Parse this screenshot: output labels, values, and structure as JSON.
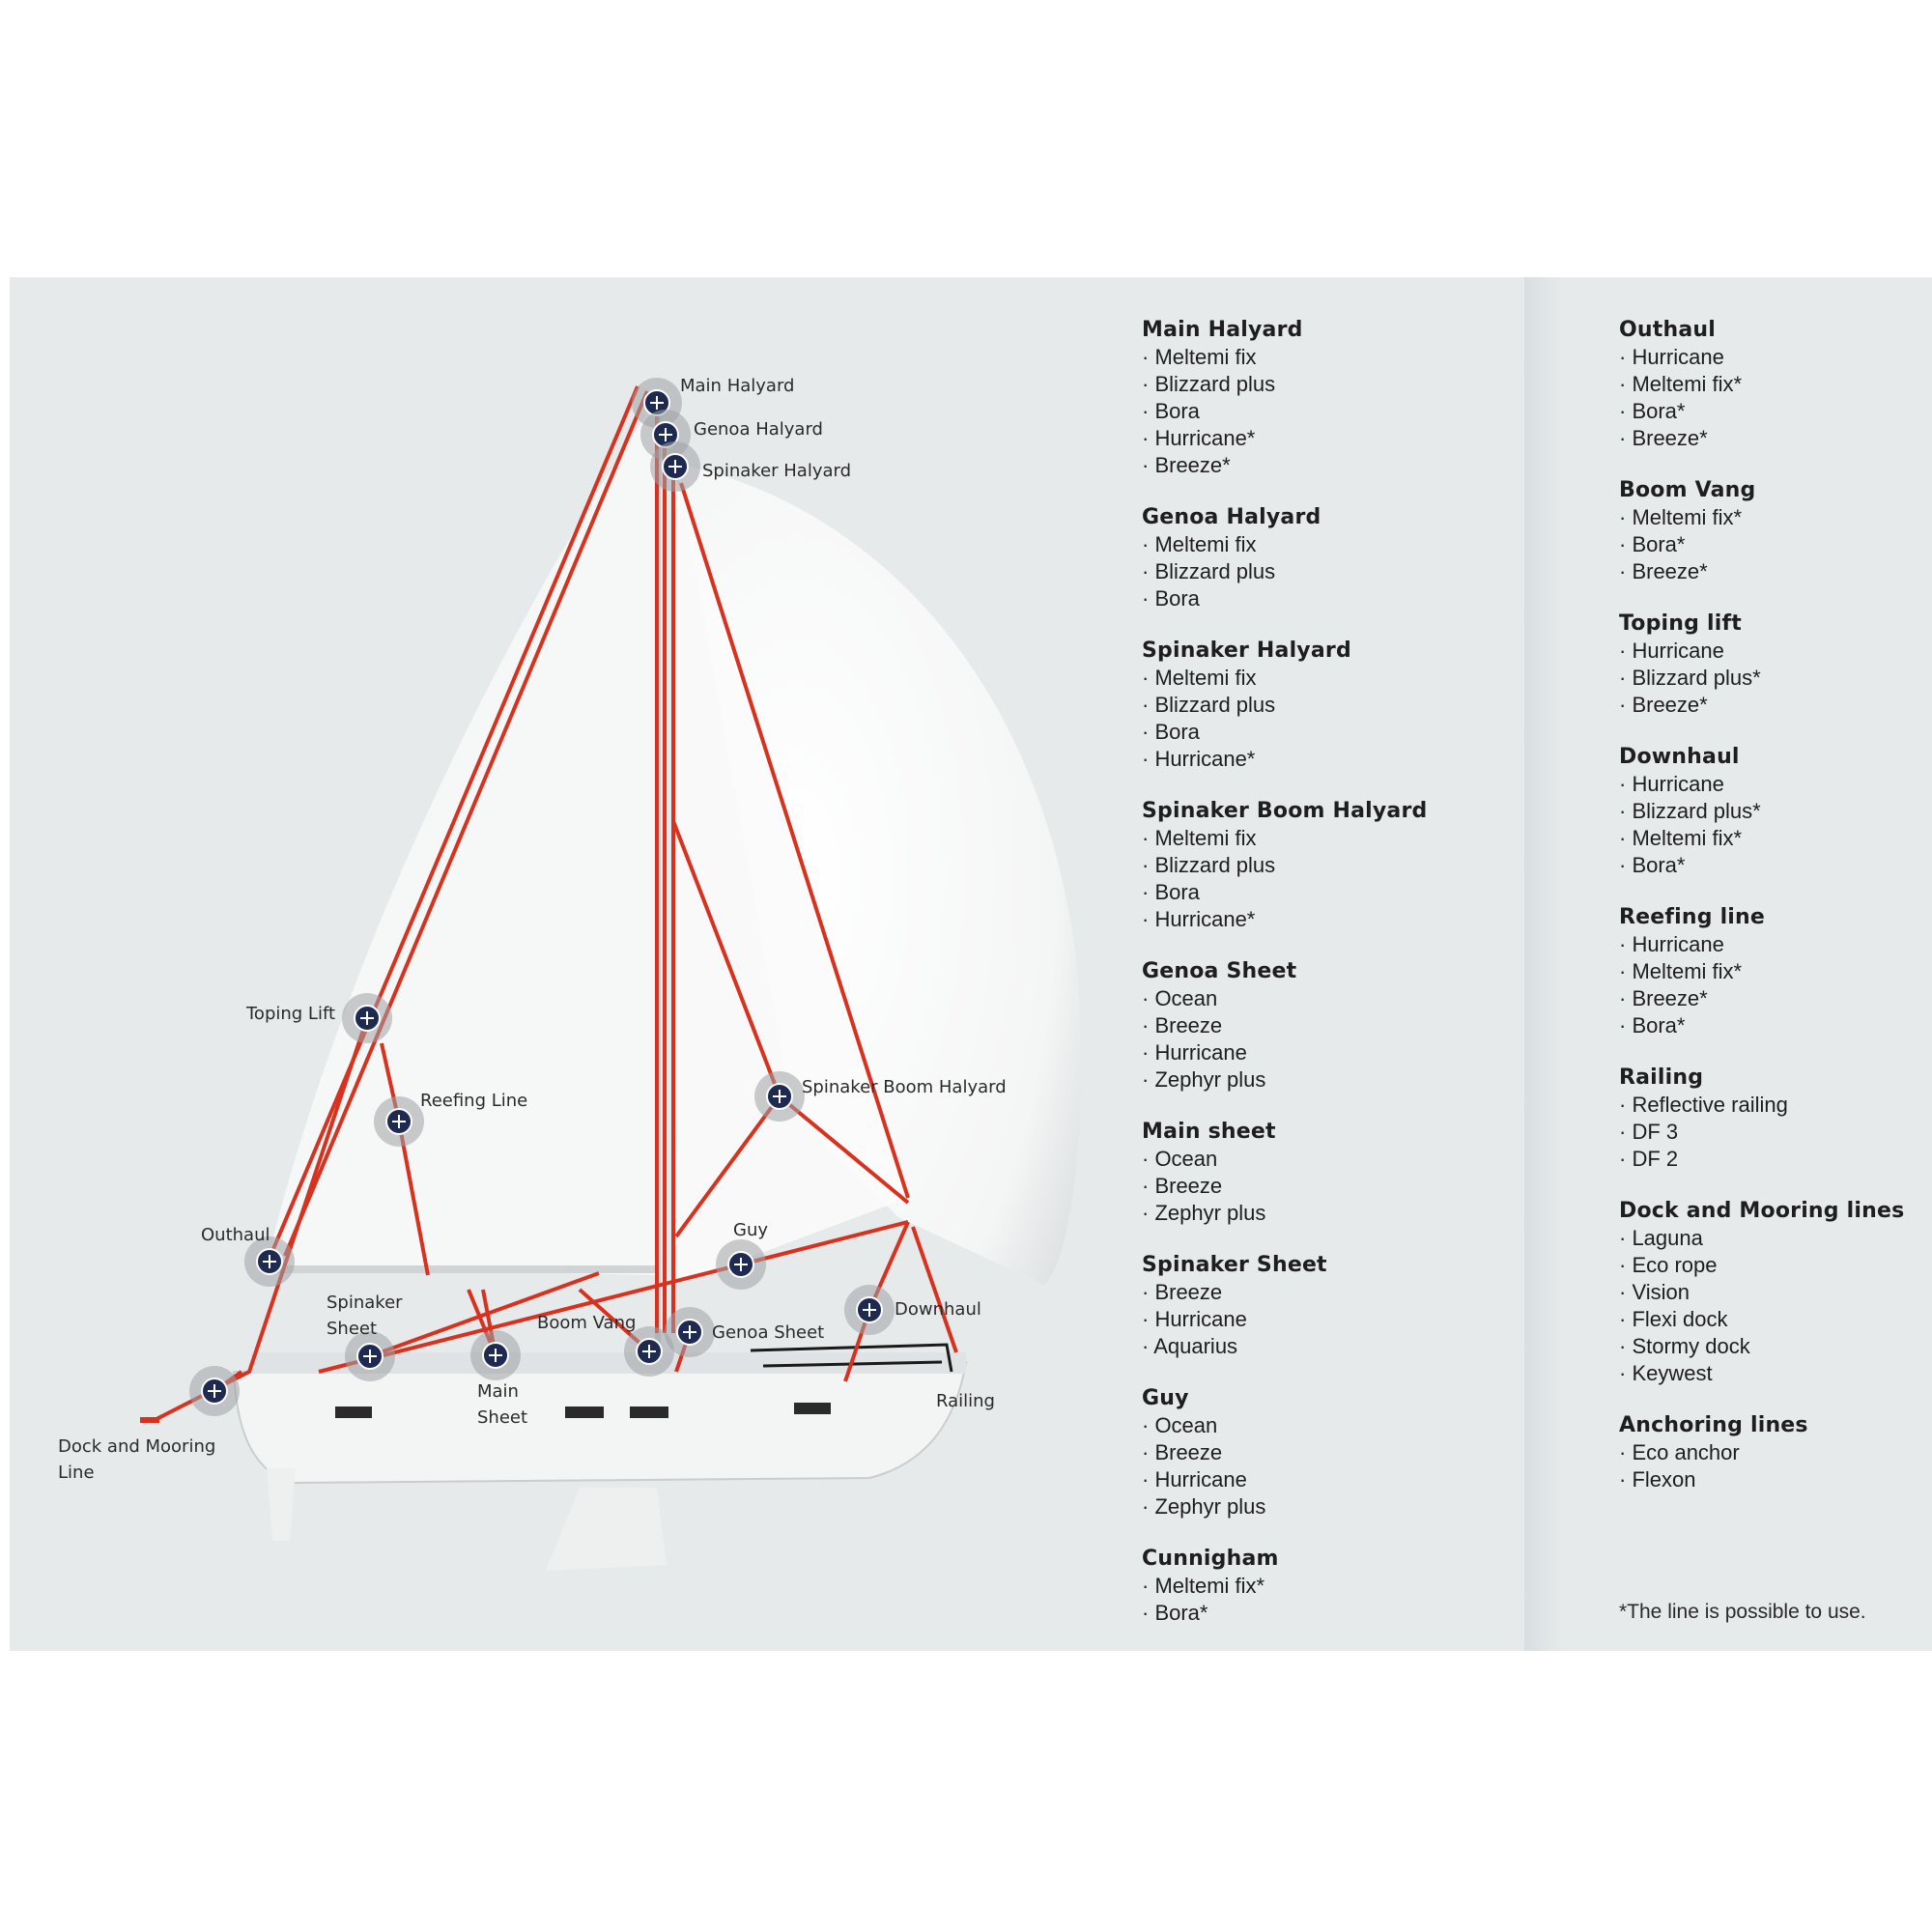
{
  "diagram": {
    "labels": {
      "main_halyard": "Main Halyard",
      "genoa_halyard": "Genoa Halyard",
      "spinaker_halyard": "Spinaker Halyard",
      "toping_lift": "Toping Lift",
      "reefing_line": "Reefing Line",
      "spinaker_boom_halyard": "Spinaker Boom Halyard",
      "outhaul": "Outhaul",
      "guy": "Guy",
      "downhaul": "Downhaul",
      "spinaker_sheet": "Spinaker\nSheet",
      "main_sheet": "Main\nSheet",
      "boom_vang": "Boom Vang",
      "genoa_sheet": "Genoa Sheet",
      "railing": "Railing",
      "dock_mooring": "Dock and Mooring\nLine"
    },
    "colors": {
      "line": "#d8321f",
      "marker": "#1e2a52",
      "panel": "#e6eaeb"
    }
  },
  "left_column": [
    {
      "title": "Main Halyard",
      "items": [
        "· Meltemi fix",
        "· Blizzard plus",
        "· Bora",
        "· Hurricane*",
        "· Breeze*"
      ]
    },
    {
      "title": "Genoa Halyard",
      "items": [
        "· Meltemi fix",
        "· Blizzard plus",
        "· Bora"
      ]
    },
    {
      "title": "Spinaker Halyard",
      "items": [
        "· Meltemi fix",
        "· Blizzard plus",
        "· Bora",
        "· Hurricane*"
      ]
    },
    {
      "title": "Spinaker Boom Halyard",
      "items": [
        "· Meltemi fix",
        "· Blizzard plus",
        "· Bora",
        "· Hurricane*"
      ]
    },
    {
      "title": "Genoa Sheet",
      "items": [
        "· Ocean",
        "· Breeze",
        "· Hurricane",
        "· Zephyr plus"
      ]
    },
    {
      "title": "Main sheet",
      "items": [
        "· Ocean",
        "· Breeze",
        "· Zephyr plus"
      ]
    },
    {
      "title": "Spinaker Sheet",
      "items": [
        "· Breeze",
        "· Hurricane",
        "· Aquarius"
      ]
    },
    {
      "title": "Guy",
      "items": [
        "· Ocean",
        "· Breeze",
        "· Hurricane",
        "· Zephyr plus"
      ]
    },
    {
      "title": "Cunnigham",
      "items": [
        "· Meltemi fix*",
        "· Bora*"
      ]
    }
  ],
  "right_column": [
    {
      "title": "Outhaul",
      "items": [
        "· Hurricane",
        "· Meltemi fix*",
        "· Bora*",
        "· Breeze*"
      ]
    },
    {
      "title": "Boom Vang",
      "items": [
        "· Meltemi fix*",
        "· Bora*",
        "· Breeze*"
      ]
    },
    {
      "title": "Toping lift",
      "items": [
        "· Hurricane",
        "· Blizzard plus*",
        "· Breeze*"
      ]
    },
    {
      "title": "Downhaul",
      "items": [
        "· Hurricane",
        "· Blizzard plus*",
        "· Meltemi fix*",
        "· Bora*"
      ]
    },
    {
      "title": "Reefing line",
      "items": [
        "· Hurricane",
        "· Meltemi fix*",
        "· Breeze*",
        "· Bora*"
      ]
    },
    {
      "title": "Railing",
      "items": [
        "· Reflective railing",
        "· DF 3",
        "· DF 2"
      ]
    },
    {
      "title": "Dock and Mooring lines",
      "items": [
        "· Laguna",
        "· Eco rope",
        "· Vision",
        "· Flexi dock",
        "· Stormy dock",
        "· Keywest"
      ]
    },
    {
      "title": "Anchoring lines",
      "items": [
        "· Eco anchor",
        "· Flexon"
      ]
    }
  ],
  "footnote": "*The line is possible to use."
}
